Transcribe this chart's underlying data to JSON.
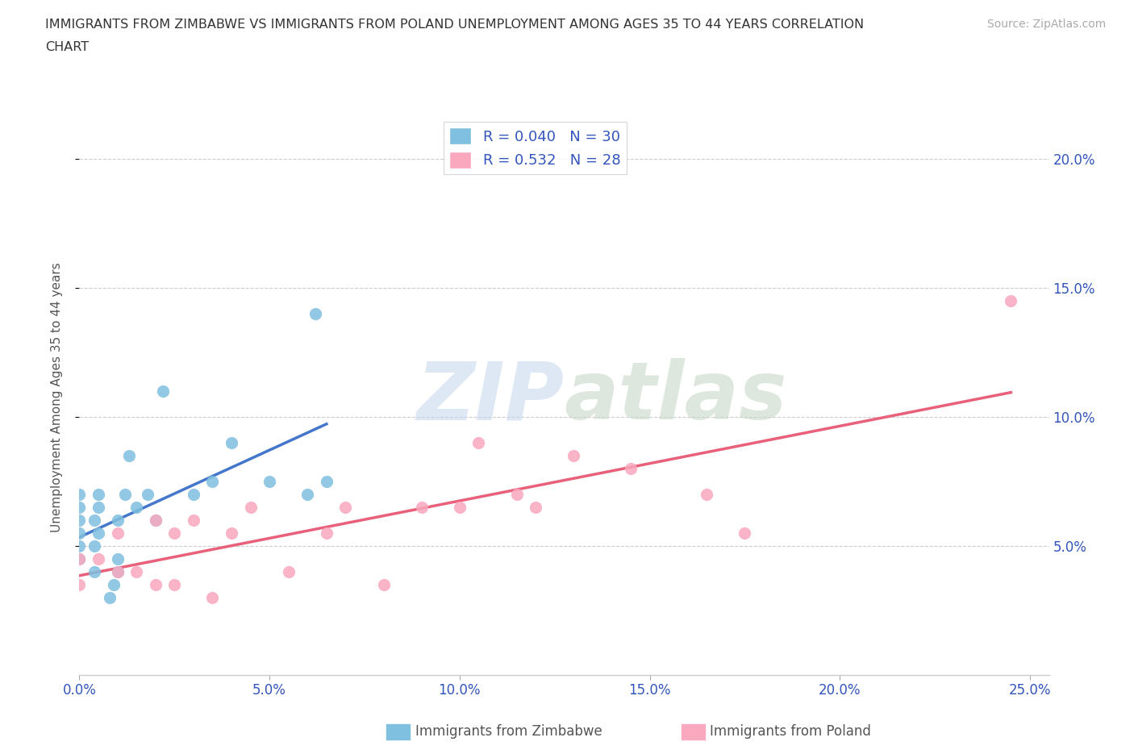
{
  "title_line1": "IMMIGRANTS FROM ZIMBABWE VS IMMIGRANTS FROM POLAND UNEMPLOYMENT AMONG AGES 35 TO 44 YEARS CORRELATION",
  "title_line2": "CHART",
  "source": "Source: ZipAtlas.com",
  "ylabel_label": "Unemployment Among Ages 35 to 44 years",
  "xlim": [
    0.0,
    0.255
  ],
  "ylim": [
    0.0,
    0.215
  ],
  "x_ticks": [
    0.0,
    0.05,
    0.1,
    0.15,
    0.2,
    0.25
  ],
  "y_ticks": [
    0.05,
    0.1,
    0.15,
    0.2
  ],
  "y_tick_labels": [
    "5.0%",
    "10.0%",
    "15.0%",
    "20.0%"
  ],
  "x_tick_labels": [
    "0.0%",
    "5.0%",
    "10.0%",
    "15.0%",
    "20.0%",
    "25.0%"
  ],
  "R1": "0.040",
  "N1": "30",
  "R2": "0.532",
  "N2": "28",
  "color_zimbabwe": "#7fbfdf",
  "color_poland": "#f9a8be",
  "color_axis_text": "#3355bb",
  "color_title": "#333333",
  "color_source": "#aaaaaa",
  "color_grid": "#cccccc",
  "zimbabwe_x": [
    0.0,
    0.0,
    0.0,
    0.0,
    0.0,
    0.0,
    0.004,
    0.004,
    0.004,
    0.005,
    0.005,
    0.005,
    0.008,
    0.009,
    0.01,
    0.01,
    0.01,
    0.012,
    0.013,
    0.015,
    0.018,
    0.02,
    0.022,
    0.03,
    0.035,
    0.04,
    0.05,
    0.06,
    0.062,
    0.065
  ],
  "zimbabwe_y": [
    0.045,
    0.05,
    0.055,
    0.06,
    0.065,
    0.07,
    0.04,
    0.05,
    0.06,
    0.055,
    0.065,
    0.07,
    0.03,
    0.035,
    0.04,
    0.045,
    0.06,
    0.07,
    0.085,
    0.065,
    0.07,
    0.06,
    0.11,
    0.07,
    0.075,
    0.09,
    0.075,
    0.07,
    0.14,
    0.075
  ],
  "poland_x": [
    0.0,
    0.0,
    0.005,
    0.01,
    0.01,
    0.015,
    0.02,
    0.02,
    0.025,
    0.025,
    0.03,
    0.035,
    0.04,
    0.045,
    0.055,
    0.065,
    0.07,
    0.08,
    0.09,
    0.1,
    0.105,
    0.115,
    0.12,
    0.13,
    0.145,
    0.165,
    0.175,
    0.245
  ],
  "poland_y": [
    0.035,
    0.045,
    0.045,
    0.04,
    0.055,
    0.04,
    0.035,
    0.06,
    0.035,
    0.055,
    0.06,
    0.03,
    0.055,
    0.065,
    0.04,
    0.055,
    0.065,
    0.035,
    0.065,
    0.065,
    0.09,
    0.07,
    0.065,
    0.085,
    0.08,
    0.07,
    0.055,
    0.145
  ]
}
